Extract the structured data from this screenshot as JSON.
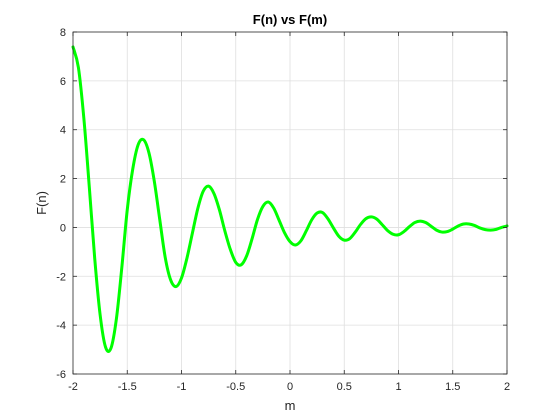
{
  "chart_data": {
    "type": "line",
    "title": "F(n) vs F(m)",
    "xlabel": "m",
    "ylabel": "F(n)",
    "xlim": [
      -2,
      2
    ],
    "ylim": [
      -6,
      8
    ],
    "xticks": [
      -2,
      -1.5,
      -1,
      -0.5,
      0,
      0.5,
      1,
      1.5,
      2
    ],
    "yticks": [
      -6,
      -4,
      -2,
      0,
      2,
      4,
      6,
      8
    ],
    "grid": true,
    "legend": "none",
    "series": [
      {
        "color": "#00ff00",
        "x": [
          -2.0,
          -1.95,
          -1.9,
          -1.85,
          -1.8,
          -1.75,
          -1.7,
          -1.65,
          -1.6,
          -1.55,
          -1.5,
          -1.45,
          -1.4,
          -1.35,
          -1.3,
          -1.25,
          -1.2,
          -1.15,
          -1.1,
          -1.05,
          -1.0,
          -0.95,
          -0.9,
          -0.85,
          -0.8,
          -0.75,
          -0.7,
          -0.65,
          -0.6,
          -0.55,
          -0.5,
          -0.45,
          -0.4,
          -0.35,
          -0.3,
          -0.25,
          -0.2,
          -0.15,
          -0.1,
          -0.05,
          0.0,
          0.05,
          0.1,
          0.15,
          0.2,
          0.25,
          0.3,
          0.35,
          0.4,
          0.45,
          0.5,
          0.55,
          0.6,
          0.65,
          0.7,
          0.75,
          0.8,
          0.85,
          0.9,
          0.95,
          1.0,
          1.05,
          1.1,
          1.15,
          1.2,
          1.25,
          1.3,
          1.35,
          1.4,
          1.45,
          1.5,
          1.55,
          1.6,
          1.65,
          1.7,
          1.75,
          1.8,
          1.85,
          1.9,
          1.95,
          2.0
        ],
        "y": [
          7.39,
          6.54,
          4.47,
          1.67,
          -1.26,
          -3.58,
          -4.9,
          -4.94,
          -3.74,
          -1.64,
          0.72,
          2.37,
          3.38,
          3.59,
          3.05,
          1.87,
          0.31,
          -1.23,
          -2.15,
          -2.42,
          -2.07,
          -1.26,
          -0.24,
          0.77,
          1.48,
          1.69,
          1.38,
          0.71,
          -0.15,
          -0.9,
          -1.43,
          -1.53,
          -1.17,
          -0.47,
          0.32,
          0.86,
          1.04,
          0.79,
          0.29,
          -0.22,
          -0.58,
          -0.72,
          -0.55,
          -0.14,
          0.31,
          0.59,
          0.61,
          0.35,
          -0.02,
          -0.36,
          -0.52,
          -0.46,
          -0.2,
          0.12,
          0.36,
          0.43,
          0.34,
          0.11,
          -0.13,
          -0.28,
          -0.3,
          -0.17,
          0.03,
          0.2,
          0.26,
          0.2,
          0.05,
          -0.11,
          -0.19,
          -0.17,
          -0.07,
          0.06,
          0.14,
          0.14,
          0.08,
          -0.02,
          -0.09,
          -0.11,
          -0.08,
          0.0,
          0.06
        ]
      }
    ]
  }
}
